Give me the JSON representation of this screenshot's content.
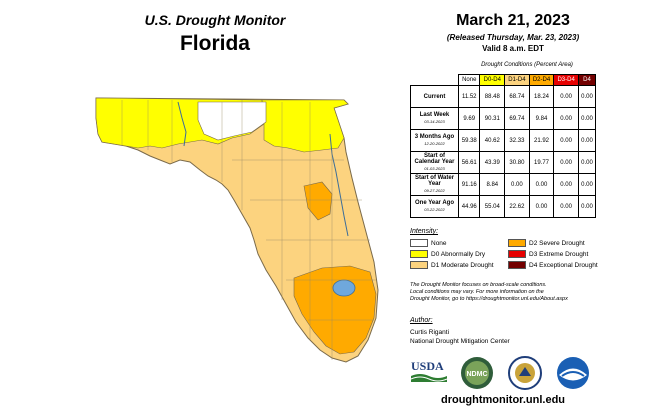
{
  "header": {
    "subtitle": "U.S. Drought Monitor",
    "state": "Florida"
  },
  "date": {
    "main": "March 21, 2023",
    "released": "(Released Thursday, Mar. 23, 2023)",
    "valid": "Valid 8 a.m. EDT"
  },
  "table": {
    "caption": "Drought Conditions (Percent Area)",
    "columns": [
      {
        "label": "None",
        "color": "#ffffff"
      },
      {
        "label": "D0-D4",
        "color": "#ffff00"
      },
      {
        "label": "D1-D4",
        "color": "#fcd37f"
      },
      {
        "label": "D2-D4",
        "color": "#ffaa00"
      },
      {
        "label": "D3-D4",
        "color": "#e60000"
      },
      {
        "label": "D4",
        "color": "#730000"
      }
    ],
    "rows": [
      {
        "label": "Current",
        "date": "",
        "values": [
          "11.52",
          "88.48",
          "68.74",
          "18.24",
          "0.00",
          "0.00"
        ]
      },
      {
        "label": "Last Week",
        "date": "03-14-2023",
        "values": [
          "9.69",
          "90.31",
          "69.74",
          "9.84",
          "0.00",
          "0.00"
        ]
      },
      {
        "label": "3 Months Ago",
        "date": "12-20-2022",
        "values": [
          "59.38",
          "40.62",
          "32.33",
          "21.92",
          "0.00",
          "0.00"
        ]
      },
      {
        "label": "Start of Calendar Year",
        "date": "01-03-2023",
        "values": [
          "56.61",
          "43.39",
          "30.80",
          "19.77",
          "0.00",
          "0.00"
        ]
      },
      {
        "label": "Start of Water Year",
        "date": "09-27-2022",
        "values": [
          "91.16",
          "8.84",
          "0.00",
          "0.00",
          "0.00",
          "0.00"
        ]
      },
      {
        "label": "One Year Ago",
        "date": "03-22-2022",
        "values": [
          "44.96",
          "55.04",
          "22.62",
          "0.00",
          "0.00",
          "0.00"
        ]
      }
    ]
  },
  "legend": {
    "heading": "Intensity:",
    "items": [
      {
        "label": "None",
        "color": "#ffffff"
      },
      {
        "label": "D0 Abnormally Dry",
        "color": "#ffff00"
      },
      {
        "label": "D1 Moderate Drought",
        "color": "#fcd37f"
      },
      {
        "label": "D2 Severe Drought",
        "color": "#ffaa00"
      },
      {
        "label": "D3 Extreme Drought",
        "color": "#e60000"
      },
      {
        "label": "D4 Exceptional Drought",
        "color": "#730000"
      }
    ]
  },
  "note": {
    "line1": "The Drought Monitor focuses on broad-scale conditions.",
    "line2": "Local conditions may vary. For more information on the",
    "line3": "Drought Monitor, go to https://droughtmonitor.unl.edu/About.aspx"
  },
  "author": {
    "heading": "Author:",
    "name": "Curtis Riganti",
    "org": "National Drought Mitigation Center"
  },
  "logos": {
    "usda": "USDA",
    "ndmc": "NDMC"
  },
  "website": "droughtmonitor.unl.edu"
}
